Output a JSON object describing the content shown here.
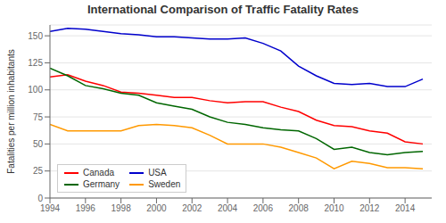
{
  "chart_data": {
    "type": "line",
    "title": "International Comparison of Traffic Fatality Rates",
    "ylabel": "Fatalities per million inhabitants",
    "x": [
      1994,
      1995,
      1996,
      1997,
      1998,
      1999,
      2000,
      2001,
      2002,
      2003,
      2004,
      2005,
      2006,
      2007,
      2008,
      2009,
      2010,
      2011,
      2012,
      2013,
      2014,
      2015
    ],
    "series": [
      {
        "name": "Canada",
        "color": "#ff0000",
        "values": [
          112,
          114,
          108,
          104,
          98,
          97,
          95,
          93,
          93,
          90,
          88,
          89,
          89,
          84,
          80,
          72,
          67,
          66,
          62,
          60,
          52,
          50
        ]
      },
      {
        "name": "USA",
        "color": "#0000cc",
        "values": [
          154,
          157,
          156,
          154,
          152,
          151,
          149,
          149,
          148,
          147,
          147,
          148,
          143,
          136,
          122,
          113,
          106,
          105,
          106,
          103,
          103,
          110
        ]
      },
      {
        "name": "Germany",
        "color": "#006600",
        "values": [
          120,
          113,
          104,
          101,
          97,
          95,
          88,
          85,
          82,
          75,
          70,
          68,
          65,
          63,
          62,
          55,
          45,
          47,
          42,
          40,
          42,
          43
        ]
      },
      {
        "name": "Sweden",
        "color": "#ff9900",
        "values": [
          68,
          62,
          62,
          62,
          62,
          67,
          68,
          67,
          65,
          58,
          50,
          50,
          50,
          47,
          42,
          37,
          27,
          34,
          32,
          28,
          28,
          27
        ]
      }
    ],
    "xlim": [
      1994,
      2015.5
    ],
    "ylim": [
      0,
      160
    ],
    "xticks": [
      1994,
      1996,
      1998,
      2000,
      2002,
      2004,
      2006,
      2008,
      2010,
      2012,
      2014
    ],
    "yticks": [
      0,
      25,
      50,
      75,
      100,
      125,
      150
    ],
    "grid": true,
    "legend": "lower left"
  }
}
